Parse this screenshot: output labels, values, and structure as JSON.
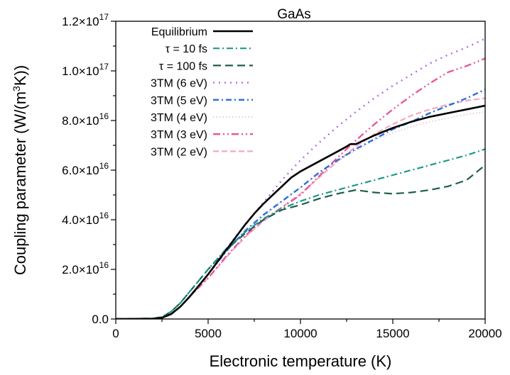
{
  "chart_data": {
    "type": "line",
    "title": "GaAs",
    "xlabel": "Electronic temperature (K)",
    "ylabel_main": "Coupling parameter (W/(m",
    "ylabel_sup": "3",
    "ylabel_tail": "K))",
    "xlim": [
      0,
      20000
    ],
    "ylim": [
      0,
      1.2e+17
    ],
    "grid": false,
    "legend_position": "top-left",
    "x_ticks": [
      {
        "value": 0,
        "label": "0"
      },
      {
        "value": 5000,
        "label": "5000"
      },
      {
        "value": 10000,
        "label": "10000"
      },
      {
        "value": 15000,
        "label": "15000"
      },
      {
        "value": 20000,
        "label": "20000"
      }
    ],
    "y_ticks": [
      {
        "value": 0,
        "plain": "0.0",
        "mant": "",
        "exp": ""
      },
      {
        "value": 2e+16,
        "plain": "",
        "mant": "2.0×10",
        "exp": "16"
      },
      {
        "value": 4e+16,
        "plain": "",
        "mant": "4.0×10",
        "exp": "16"
      },
      {
        "value": 6e+16,
        "plain": "",
        "mant": "6.0×10",
        "exp": "16"
      },
      {
        "value": 8e+16,
        "plain": "",
        "mant": "8.0×10",
        "exp": "16"
      },
      {
        "value": 1e+17,
        "plain": "",
        "mant": "1.0×10",
        "exp": "17"
      },
      {
        "value": 1.2e+17,
        "plain": "",
        "mant": "1.2×10",
        "exp": "17"
      }
    ],
    "series": [
      {
        "name": "Equilibrium",
        "color": "#000000",
        "dash": "",
        "width": 2.6,
        "x": [
          0,
          2000,
          2500,
          3000,
          3500,
          4000,
          4500,
          5000,
          5500,
          6000,
          6500,
          7000,
          7500,
          8000,
          8500,
          9000,
          9500,
          10000,
          11000,
          12000,
          12500,
          12700,
          13000,
          14000,
          15000,
          16000,
          17000,
          18000,
          19000,
          20000
        ],
        "y": [
          0,
          100000000000000.0,
          500000000000000.0,
          2000000000000000.0,
          5000000000000000.0,
          9000000000000000.0,
          1.35e+16,
          1.8e+16,
          2.3e+16,
          2.8e+16,
          3.3e+16,
          3.8e+16,
          4.25e+16,
          4.65e+16,
          5e+16,
          5.35e+16,
          5.7e+16,
          5.95e+16,
          6.35e+16,
          6.75e+16,
          6.95e+16,
          7.05e+16,
          7.05e+16,
          7.4e+16,
          7.7e+16,
          7.95e+16,
          8.15e+16,
          8.3e+16,
          8.45e+16,
          8.6e+16
        ]
      },
      {
        "name": "τ = 10 fs",
        "color": "#1a9a8a",
        "dash": "9,4,2,4",
        "width": 2.2,
        "x": [
          0,
          2000,
          2500,
          3000,
          3500,
          4000,
          5000,
          6000,
          7000,
          8000,
          9000,
          10000,
          11000,
          12000,
          13000,
          14000,
          15000,
          16000,
          17000,
          18000,
          19000,
          20000
        ],
        "y": [
          0,
          200000000000000.0,
          800000000000000.0,
          3000000000000000.0,
          6500000000000000.0,
          1.1e+16,
          2e+16,
          2.85e+16,
          3.5e+16,
          4.05e+16,
          4.45e+16,
          4.75e+16,
          5e+16,
          5.2e+16,
          5.4e+16,
          5.6e+16,
          5.8e+16,
          6e+16,
          6.2e+16,
          6.4e+16,
          6.6e+16,
          6.85e+16
        ]
      },
      {
        "name": "τ = 100 fs",
        "color": "#1d5c4e",
        "dash": "11,6",
        "width": 2.2,
        "x": [
          0,
          2000,
          2500,
          3000,
          3500,
          4000,
          5000,
          6000,
          7000,
          8000,
          9000,
          10000,
          11000,
          12000,
          13000,
          14000,
          15000,
          16000,
          17000,
          18000,
          19000,
          20000
        ],
        "y": [
          0,
          200000000000000.0,
          800000000000000.0,
          3000000000000000.0,
          6500000000000000.0,
          1.1e+16,
          2e+16,
          2.8e+16,
          3.45e+16,
          4e+16,
          4.4e+16,
          4.6e+16,
          4.85e+16,
          5.05e+16,
          5.2e+16,
          5.1e+16,
          5.05e+16,
          5.1e+16,
          5.2e+16,
          5.35e+16,
          5.6e+16,
          6.2e+16
        ]
      },
      {
        "name": "3TM (6 eV)",
        "color": "#b36be0",
        "dash": "2,6",
        "width": 2.4,
        "x": [
          0,
          2000,
          2500,
          3000,
          3500,
          4000,
          5000,
          6000,
          7000,
          8000,
          9000,
          10000,
          11000,
          12000,
          13000,
          14000,
          15000,
          16000,
          17000,
          18000,
          19000,
          20000
        ],
        "y": [
          0,
          100000000000000.0,
          500000000000000.0,
          2000000000000000.0,
          5000000000000000.0,
          9000000000000000.0,
          1.8e+16,
          2.85e+16,
          3.8e+16,
          4.7e+16,
          5.6e+16,
          6.4e+16,
          7.1e+16,
          7.75e+16,
          8.35e+16,
          8.9e+16,
          9.4e+16,
          9.85e+16,
          1.03e+17,
          1.065e+17,
          1.095e+17,
          1.13e+17
        ]
      },
      {
        "name": "3TM (5 eV)",
        "color": "#2a6fd6",
        "dash": "8,4,2,4",
        "width": 2.4,
        "x": [
          0,
          2000,
          2500,
          3000,
          3500,
          4000,
          5000,
          6000,
          7000,
          8000,
          9000,
          10000,
          11000,
          12000,
          13000,
          14000,
          15000,
          16000,
          17000,
          18000,
          19000,
          20000
        ],
        "y": [
          0,
          100000000000000.0,
          500000000000000.0,
          2000000000000000.0,
          5000000000000000.0,
          9000000000000000.0,
          1.8e+16,
          2.75e+16,
          3.55e+16,
          4.2e+16,
          4.75e+16,
          5.3e+16,
          5.9e+16,
          6.4e+16,
          6.85e+16,
          7.25e+16,
          7.65e+16,
          7.95e+16,
          8.3e+16,
          8.6e+16,
          8.9e+16,
          9.25e+16
        ]
      },
      {
        "name": "3TM (4 eV)",
        "color": "#e6c6dc",
        "dash": "1.5,3",
        "width": 1.8,
        "x": [
          0,
          2000,
          2500,
          3000,
          3500,
          4000,
          5000,
          6000,
          7000,
          8000,
          9000,
          10000,
          11000,
          12000,
          13000,
          14000,
          15000,
          16000,
          17000,
          18000,
          19000,
          20000
        ],
        "y": [
          0,
          100000000000000.0,
          500000000000000.0,
          2000000000000000.0,
          5000000000000000.0,
          9000000000000000.0,
          1.8e+16,
          2.75e+16,
          3.5e+16,
          4.15e+16,
          4.75e+16,
          5.3e+16,
          5.85e+16,
          6.35e+16,
          6.8e+16,
          7.2e+16,
          7.5e+16,
          7.75e+16,
          7.95e+16,
          8.1e+16,
          8.25e+16,
          8.35e+16
        ]
      },
      {
        "name": "3TM (3 eV)",
        "color": "#e8549a",
        "dash": "10,4,2,4,2,4",
        "width": 2.3,
        "x": [
          0,
          2000,
          2500,
          3000,
          3500,
          4000,
          5000,
          6000,
          7000,
          8000,
          9000,
          10000,
          11000,
          12000,
          13000,
          14000,
          15000,
          16000,
          17000,
          18000,
          19000,
          20000
        ],
        "y": [
          0,
          100000000000000.0,
          500000000000000.0,
          2000000000000000.0,
          5000000000000000.0,
          9000000000000000.0,
          1.65e+16,
          2.55e+16,
          3.35e+16,
          4e+16,
          4.5e+16,
          5e+16,
          5.75e+16,
          6.5e+16,
          7.2e+16,
          7.85e+16,
          8.45e+16,
          9e+16,
          9.5e+16,
          9.95e+16,
          1.02e+17,
          1.05e+17
        ]
      },
      {
        "name": "3TM (2 eV)",
        "color": "#f2a9c4",
        "dash": "8,4",
        "width": 2.2,
        "x": [
          0,
          2000,
          2500,
          3000,
          3500,
          4000,
          5000,
          6000,
          7000,
          8000,
          9000,
          10000,
          11000,
          12000,
          13000,
          14000,
          15000,
          16000,
          17000,
          18000,
          19000,
          20000
        ],
        "y": [
          0,
          100000000000000.0,
          500000000000000.0,
          2000000000000000.0,
          5000000000000000.0,
          9000000000000000.0,
          1.65e+16,
          2.5e+16,
          3.3e+16,
          3.95e+16,
          4.5e+16,
          5.05e+16,
          5.7e+16,
          6.35e+16,
          6.95e+16,
          7.45e+16,
          7.85e+16,
          8.2e+16,
          8.45e+16,
          8.65e+16,
          8.8e+16,
          8.9e+16
        ]
      }
    ]
  }
}
